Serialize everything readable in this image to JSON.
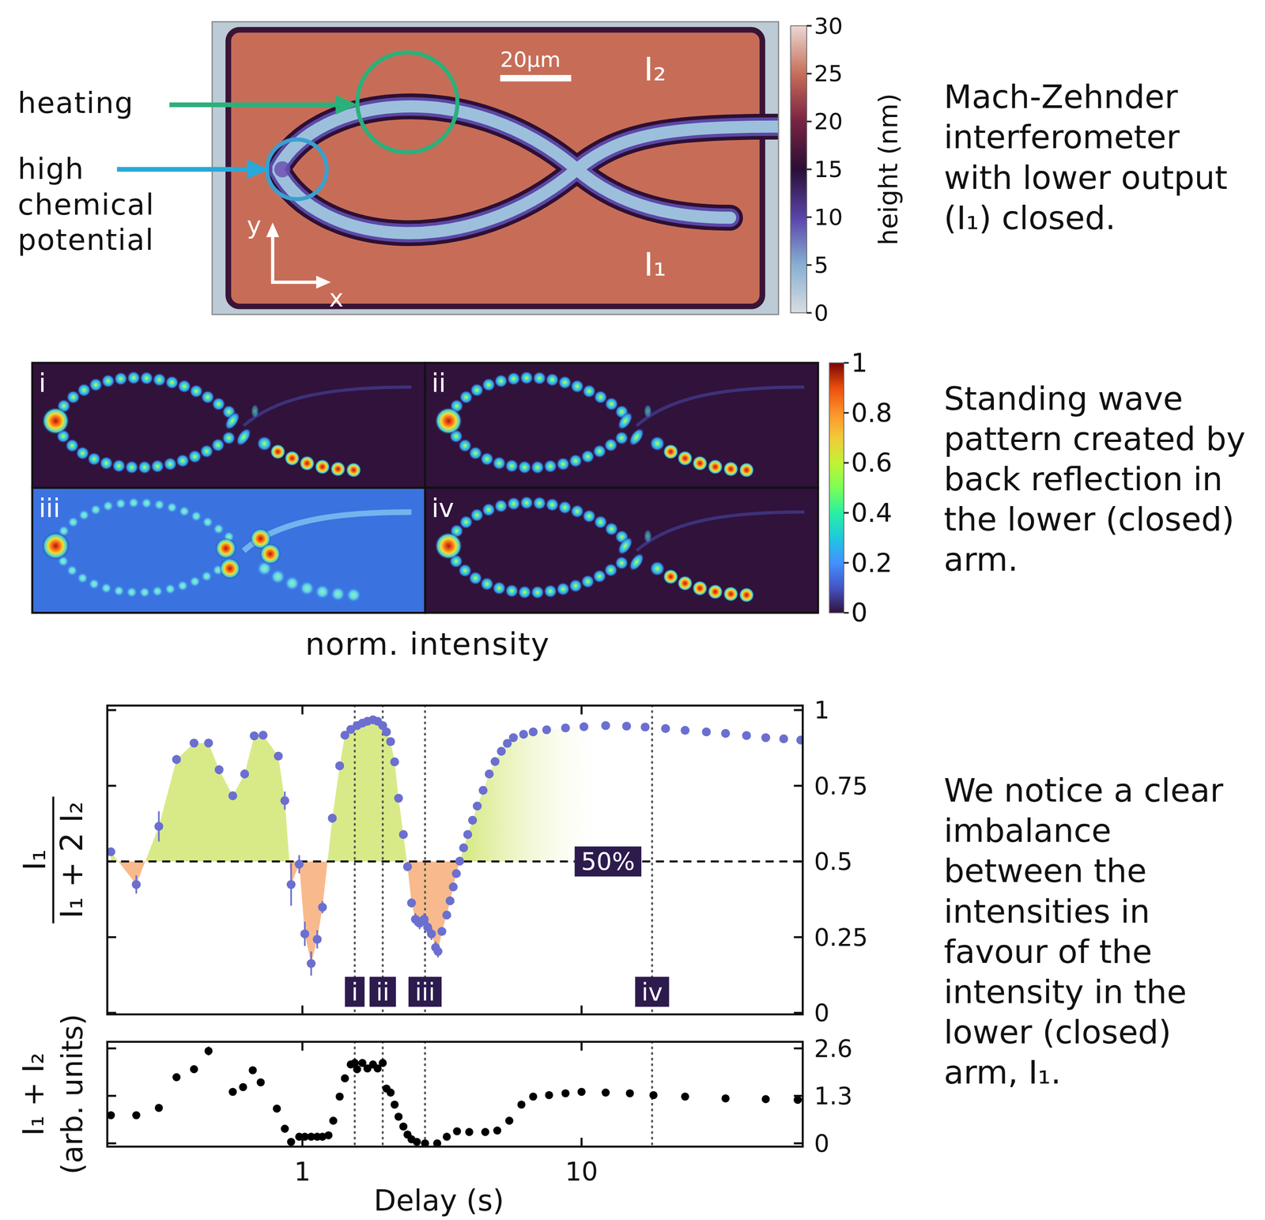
{
  "afm": {
    "annotations": {
      "heating": "heating",
      "high_chemical_potential": [
        "high",
        "chemical",
        "potential"
      ]
    },
    "scale_bar": "20µm",
    "outputs": {
      "upper": "I₂",
      "lower": "I₁"
    },
    "axes": {
      "x": "x",
      "y": "y"
    },
    "colorbar": {
      "label": "height (nm)",
      "lim": [
        0,
        30
      ],
      "ticks": [
        0,
        5,
        10,
        15,
        20,
        25,
        30
      ]
    },
    "caption": [
      "Mach-Zehnder",
      "interferometer",
      "with lower output",
      "(I₁) closed."
    ]
  },
  "intensity": {
    "panels": [
      "i",
      "ii",
      "iii",
      "iv"
    ],
    "colorbar": {
      "label": "norm. intensity",
      "lim": [
        0,
        1
      ],
      "ticks": [
        0,
        0.2,
        0.4,
        0.6,
        0.8,
        1
      ]
    },
    "caption": [
      "Standing wave",
      "pattern created by",
      "back reflection in",
      "the lower (closed)",
      "arm."
    ]
  },
  "chart_data": [
    {
      "type": "scatter",
      "log": "x",
      "tick_labels": "y",
      "color": "#6b6fd0",
      "xlim": [
        0.2,
        62
      ],
      "ylim": [
        -0.005,
        1.015
      ],
      "xticks": [
        1,
        10
      ],
      "yticks": [
        0,
        0.25,
        0.5,
        0.75,
        1
      ],
      "ylabel": {
        "numerator": "I₁",
        "denominator": "I₁ + 2 I₂"
      },
      "reference_line": {
        "value": 0.5,
        "label": "50%"
      },
      "markers": [
        {
          "x": 1.54,
          "label": "i"
        },
        {
          "x": 1.94,
          "label": "ii"
        },
        {
          "x": 2.75,
          "label": "iii"
        },
        {
          "x": 17.9,
          "label": "iv"
        }
      ],
      "x": [
        0.206,
        0.254,
        0.306,
        0.354,
        0.409,
        0.461,
        0.503,
        0.563,
        0.621,
        0.672,
        0.723,
        0.82,
        0.865,
        0.911,
        0.974,
        1.02,
        1.075,
        1.13,
        1.18,
        1.28,
        1.36,
        1.42,
        1.49,
        1.57,
        1.64,
        1.71,
        1.79,
        1.86,
        1.94,
        2.0,
        2.07,
        2.14,
        2.21,
        2.3,
        2.38,
        2.46,
        2.54,
        2.63,
        2.73,
        2.81,
        2.9,
        3.0,
        3.06,
        3.16,
        3.29,
        3.38,
        3.47,
        3.56,
        3.66,
        3.78,
        3.91,
        4.07,
        4.23,
        4.44,
        4.67,
        4.9,
        5.16,
        5.42,
        5.7,
        6.2,
        6.71,
        7.5,
        8.76,
        10.2,
        12.2,
        14.5,
        16.9,
        20,
        23.5,
        28,
        32.8,
        39,
        45.7,
        53,
        61
      ],
      "values": [
        0.532,
        0.424,
        0.616,
        0.837,
        0.891,
        0.891,
        0.803,
        0.717,
        0.789,
        0.915,
        0.917,
        0.848,
        0.701,
        0.424,
        0.491,
        0.261,
        0.163,
        0.243,
        0.349,
        0.643,
        0.816,
        0.917,
        0.936,
        0.949,
        0.957,
        0.963,
        0.968,
        0.963,
        0.949,
        0.928,
        0.896,
        0.829,
        0.709,
        0.589,
        0.483,
        0.363,
        0.309,
        0.296,
        0.309,
        0.283,
        0.261,
        0.216,
        0.203,
        0.269,
        0.323,
        0.37,
        0.416,
        0.46,
        0.501,
        0.545,
        0.589,
        0.636,
        0.683,
        0.735,
        0.789,
        0.83,
        0.864,
        0.89,
        0.909,
        0.92,
        0.928,
        0.935,
        0.941,
        0.945,
        0.949,
        0.947,
        0.944,
        0.939,
        0.933,
        0.928,
        0.923,
        0.916,
        0.909,
        0.905,
        0.901
      ],
      "errors": [
        0.012,
        0.03,
        0.05,
        0.015,
        0.012,
        0.012,
        0.015,
        0.012,
        0.015,
        0.012,
        0.012,
        0.012,
        0.03,
        0.07,
        0.03,
        0.04,
        0.04,
        0.03,
        0.02,
        0.015,
        0.012,
        0.01,
        0.01,
        0.01,
        0.01,
        0.01,
        0.01,
        0.01,
        0.01,
        0.01,
        0.01,
        0.012,
        0.012,
        0.012,
        0.015,
        0.015,
        0.02,
        0.02,
        0.02,
        0.02,
        0.02,
        0.02,
        0.02,
        0.01,
        0.008,
        0.008,
        0.008,
        0.008,
        0.008,
        0.008,
        0.008,
        0.008,
        0.008,
        0.008,
        0.008,
        0.008,
        0.008,
        0.008,
        0.008,
        0.008,
        0.008,
        0.008,
        0.008,
        0.008,
        0.008,
        0.008,
        0.008,
        0.008,
        0.008,
        0.008,
        0.008,
        0.008,
        0.008,
        0.008,
        0.008
      ]
    },
    {
      "type": "scatter",
      "log": "x",
      "color": "#000000",
      "xlim": [
        0.2,
        62
      ],
      "ylim": [
        -0.09,
        2.78
      ],
      "xticks": [
        1,
        10
      ],
      "yticks": [
        0,
        1.3,
        2.6
      ],
      "xlabel": "Delay (s)",
      "ylabel": [
        "I₁ + I₂",
        "(arb. units)"
      ],
      "markers": [
        {
          "x": 1.54
        },
        {
          "x": 1.94
        },
        {
          "x": 2.75
        },
        {
          "x": 17.9
        }
      ],
      "x": [
        0.206,
        0.254,
        0.306,
        0.354,
        0.409,
        0.461,
        0.563,
        0.613,
        0.664,
        0.709,
        0.81,
        0.865,
        0.911,
        0.974,
        1.02,
        1.075,
        1.13,
        1.18,
        1.24,
        1.29,
        1.36,
        1.42,
        1.49,
        1.54,
        1.57,
        1.64,
        1.71,
        1.79,
        1.86,
        1.94,
        2.0,
        2.07,
        2.14,
        2.21,
        2.3,
        2.38,
        2.46,
        2.57,
        2.75,
        3.04,
        3.29,
        3.58,
        3.96,
        4.52,
        4.99,
        5.51,
        6.09,
        6.71,
        7.65,
        8.76,
        10,
        12.2,
        14.9,
        18.1,
        23.5,
        32.8,
        45.7,
        59.5
      ],
      "values": [
        0.77,
        0.77,
        0.97,
        1.81,
        2.03,
        2.53,
        1.41,
        1.54,
        2.0,
        1.67,
        0.95,
        0.4,
        0.04,
        0.18,
        0.18,
        0.18,
        0.18,
        0.18,
        0.22,
        0.62,
        1.28,
        1.78,
        2.16,
        2.2,
        2.03,
        2.2,
        2.05,
        2.16,
        2.05,
        2.2,
        1.5,
        1.39,
        1.06,
        0.73,
        0.46,
        0.24,
        0.11,
        0.04,
        0,
        0,
        0.18,
        0.33,
        0.31,
        0.31,
        0.35,
        0.62,
        1.06,
        1.28,
        1.32,
        1.37,
        1.41,
        1.39,
        1.37,
        1.32,
        1.28,
        1.23,
        1.21,
        1.19
      ],
      "errors": [
        0.08,
        0.06,
        0.1,
        0.08,
        0.08,
        0.12,
        0.06,
        0.06,
        0.1,
        0.1,
        0.04,
        0.04,
        0.03,
        0.03,
        0.03,
        0.03,
        0.03,
        0.03,
        0.03,
        0.04,
        0.05,
        0.08,
        0.1,
        0.1,
        0.1,
        0.1,
        0.1,
        0.1,
        0.1,
        0.1,
        0.06,
        0.06,
        0.04,
        0.04,
        0.03,
        0.03,
        0.02,
        0.02,
        0.02,
        0.02,
        0.02,
        0.02,
        0.02,
        0.02,
        0.02,
        0.03,
        0.04,
        0.05,
        0.05,
        0.05,
        0.05,
        0.05,
        0.05,
        0.06,
        0.06,
        0.06,
        0.06,
        0.06
      ]
    }
  ],
  "caption": [
    "We notice a clear",
    "imbalance",
    "between the",
    "intensities in",
    "favour of the",
    "intensity in the",
    "lower (closed)",
    "arm, I₁."
  ]
}
